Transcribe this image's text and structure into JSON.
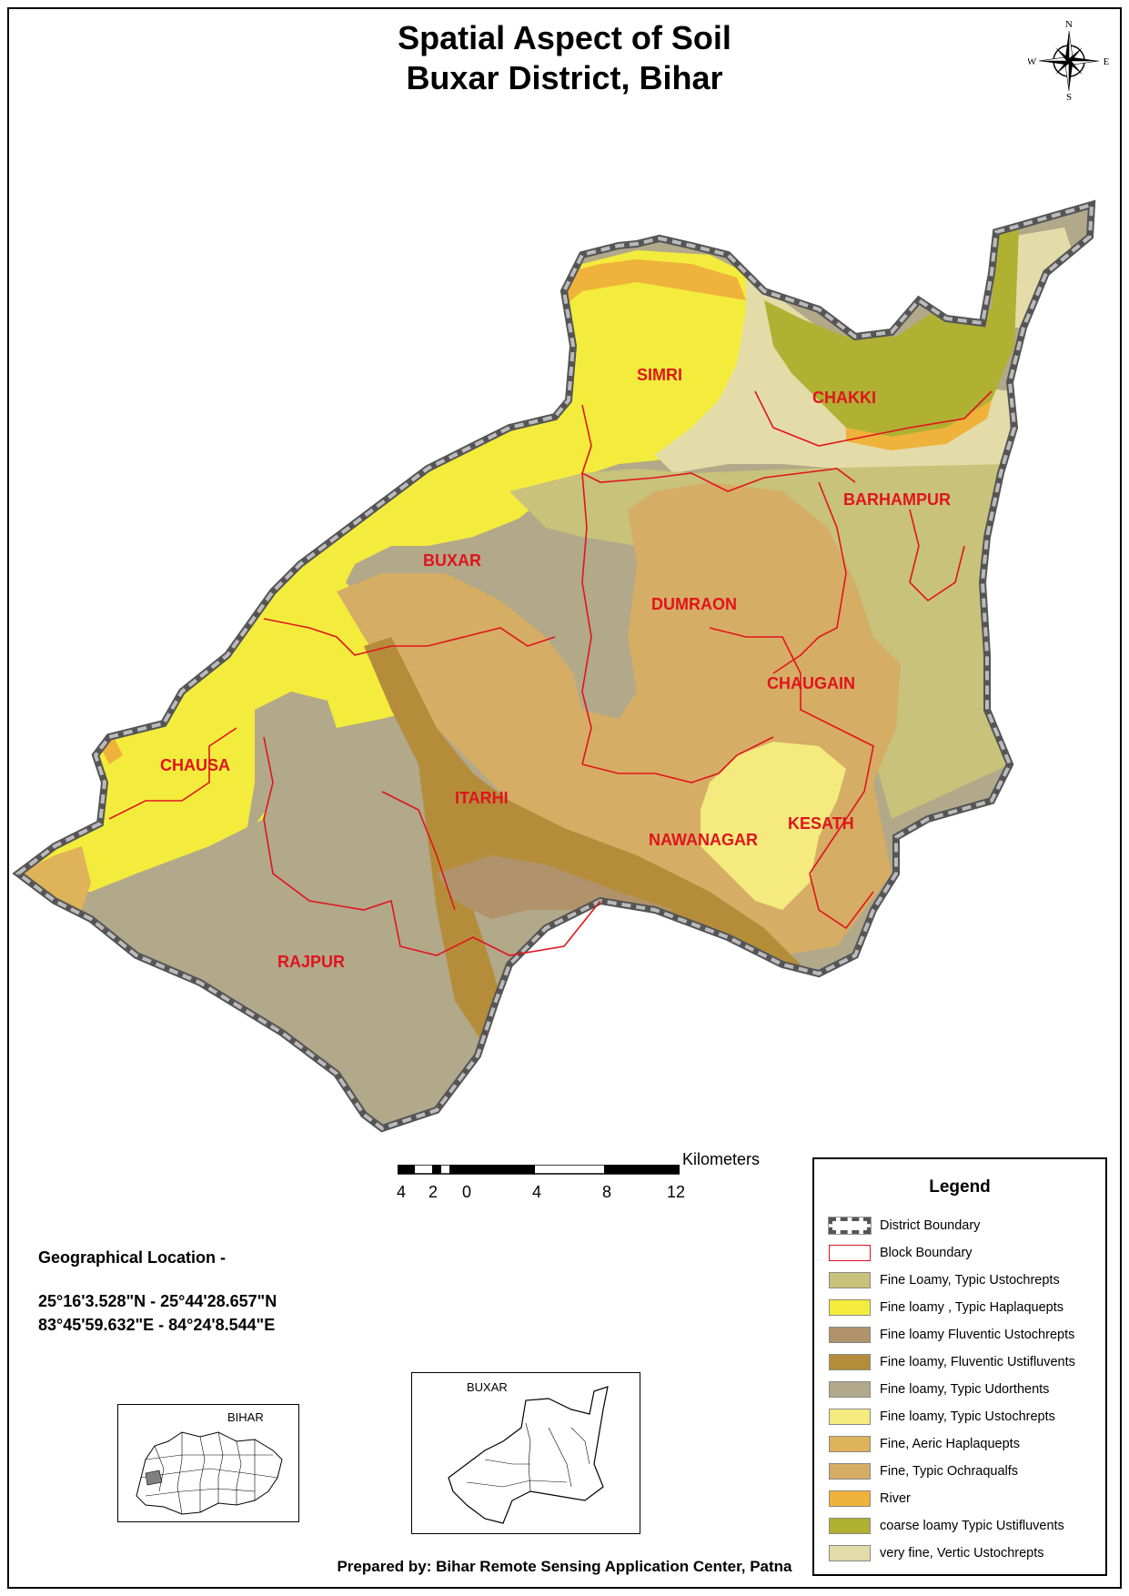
{
  "title": {
    "line1": "Spatial Aspect of Soil",
    "line2": "Buxar District, Bihar"
  },
  "compass": {
    "n": "N",
    "s": "S",
    "e": "E",
    "w": "W",
    "icon": "compass-rose-icon"
  },
  "blocks": [
    {
      "name": "SIMRI"
    },
    {
      "name": "CHAKKI"
    },
    {
      "name": "BARHAMPUR"
    },
    {
      "name": "BUXAR"
    },
    {
      "name": "DUMRAON"
    },
    {
      "name": "CHAUGAIN"
    },
    {
      "name": "CHAUSA"
    },
    {
      "name": "ITARHI"
    },
    {
      "name": "NAWANAGAR"
    },
    {
      "name": "KESATH"
    },
    {
      "name": "RAJPUR"
    }
  ],
  "geo": {
    "heading": "Geographical Location -",
    "lat": "25°16'3.528\"N  - 25°44'28.657\"N",
    "lon": "83°45'59.632\"E - 84°24'8.544\"E"
  },
  "scale": {
    "unit": "Kilometers",
    "ticks": [
      "4",
      "2",
      "0",
      "4",
      "8",
      "12"
    ]
  },
  "inset_bihar": {
    "label": "BIHAR"
  },
  "inset_buxar": {
    "label": "BUXAR"
  },
  "legend": {
    "title": "Legend",
    "items": [
      {
        "label": "District Boundary",
        "color": "#ffffff",
        "kind": "district"
      },
      {
        "label": "Block Boundary",
        "color": "#ffffff",
        "kind": "block"
      },
      {
        "label": "Fine Loamy, Typic Ustochrepts",
        "color": "#c8c27a"
      },
      {
        "label": "Fine loamy , Typic Haplaquepts",
        "color": "#f4ec3c"
      },
      {
        "label": "Fine loamy Fluventic Ustochrepts",
        "color": "#b0936a"
      },
      {
        "label": "Fine loamy, Fluventic Ustifluvents",
        "color": "#b58d3a"
      },
      {
        "label": "Fine loamy, Typic Udorthents",
        "color": "#b2a88a"
      },
      {
        "label": "Fine loamy, Typic Ustochrepts",
        "color": "#f4ea7e"
      },
      {
        "label": "Fine, Aeric Haplaquepts",
        "color": "#deb35a"
      },
      {
        "label": "Fine, Typic Ochraqualfs",
        "color": "#d6ad64"
      },
      {
        "label": "River",
        "color": "#efb23a"
      },
      {
        "label": "coarse loamy Typic Ustifluvents",
        "color": "#b0b033"
      },
      {
        "label": "very fine, Vertic Ustochrepts",
        "color": "#e3dca8"
      }
    ]
  },
  "footer": "Prepared by: Bihar Remote Sensing Application Center, Patna"
}
